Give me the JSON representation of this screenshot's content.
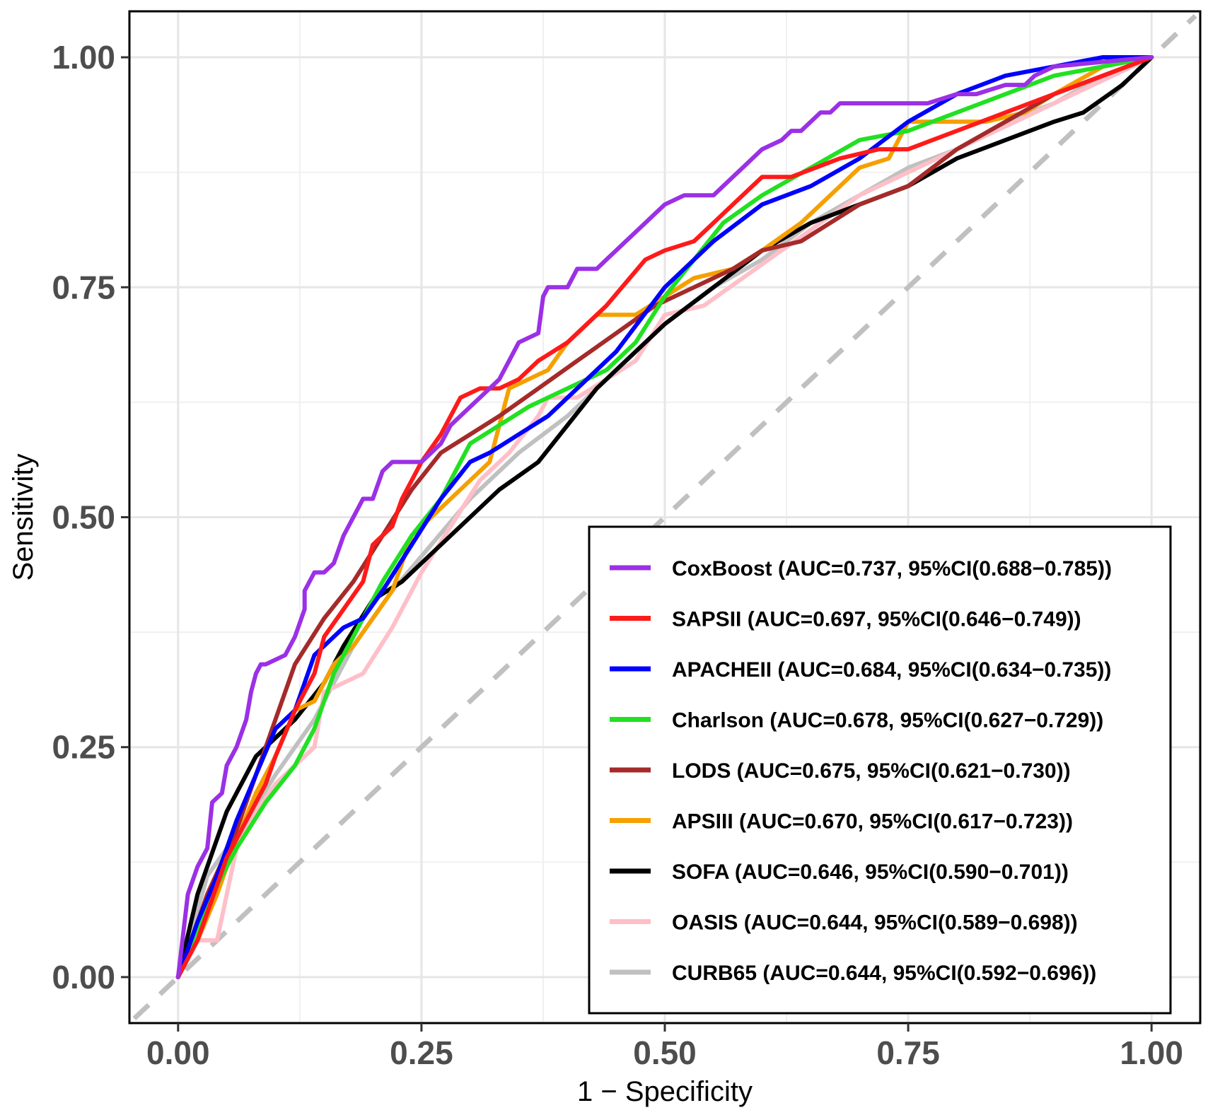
{
  "chart_data": {
    "type": "line",
    "title": "",
    "xlabel": "1 − Specificity",
    "ylabel": "Sensitivity",
    "xlim": [
      -0.05,
      1.05
    ],
    "ylim": [
      -0.05,
      1.05
    ],
    "xticks": [
      "0.00",
      "0.25",
      "0.50",
      "0.75",
      "1.00"
    ],
    "yticks": [
      "0.00",
      "0.25",
      "0.50",
      "0.75",
      "1.00"
    ],
    "grid": true,
    "legend_position": "bottom-right",
    "reference_line": {
      "from": [
        0,
        0
      ],
      "to": [
        1,
        1
      ],
      "style": "dashed",
      "color": "#c0c0c0"
    },
    "series": [
      {
        "name": "CoxBoost",
        "label": "CoxBoost (AUC=0.737, 95%CI(0.688−0.785))",
        "color": "#9b30e6",
        "x": [
          0,
          0.01,
          0.02,
          0.03,
          0.035,
          0.045,
          0.05,
          0.06,
          0.07,
          0.075,
          0.08,
          0.085,
          0.09,
          0.11,
          0.12,
          0.13,
          0.13,
          0.14,
          0.15,
          0.16,
          0.17,
          0.18,
          0.19,
          0.2,
          0.21,
          0.22,
          0.25,
          0.27,
          0.28,
          0.3,
          0.32,
          0.33,
          0.34,
          0.35,
          0.37,
          0.375,
          0.38,
          0.4,
          0.41,
          0.43,
          0.44,
          0.45,
          0.46,
          0.47,
          0.48,
          0.49,
          0.5,
          0.52,
          0.55,
          0.57,
          0.58,
          0.59,
          0.6,
          0.62,
          0.63,
          0.64,
          0.66,
          0.67,
          0.68,
          0.7,
          0.77,
          0.8,
          0.82,
          0.85,
          0.87,
          0.88,
          0.9,
          1.0
        ],
        "y": [
          0,
          0.09,
          0.12,
          0.14,
          0.19,
          0.2,
          0.23,
          0.25,
          0.28,
          0.31,
          0.33,
          0.34,
          0.34,
          0.35,
          0.37,
          0.4,
          0.42,
          0.44,
          0.44,
          0.45,
          0.48,
          0.5,
          0.52,
          0.52,
          0.55,
          0.56,
          0.56,
          0.58,
          0.6,
          0.62,
          0.64,
          0.65,
          0.67,
          0.69,
          0.7,
          0.74,
          0.75,
          0.75,
          0.77,
          0.77,
          0.78,
          0.79,
          0.8,
          0.81,
          0.82,
          0.83,
          0.84,
          0.85,
          0.85,
          0.87,
          0.88,
          0.89,
          0.9,
          0.91,
          0.92,
          0.92,
          0.94,
          0.94,
          0.95,
          0.95,
          0.95,
          0.96,
          0.96,
          0.97,
          0.97,
          0.98,
          0.99,
          1.0
        ]
      },
      {
        "name": "SAPSII",
        "label": "SAPSII (AUC=0.697, 95%CI(0.646−0.749))",
        "color": "#ff1a1a",
        "x": [
          0,
          0.02,
          0.03,
          0.05,
          0.07,
          0.09,
          0.1,
          0.12,
          0.14,
          0.15,
          0.17,
          0.19,
          0.2,
          0.22,
          0.23,
          0.25,
          0.27,
          0.29,
          0.31,
          0.33,
          0.35,
          0.37,
          0.4,
          0.44,
          0.48,
          0.5,
          0.53,
          0.57,
          0.6,
          0.63,
          0.68,
          0.72,
          0.75,
          0.8,
          0.85,
          0.9,
          0.95,
          1.0
        ],
        "y": [
          0,
          0.04,
          0.07,
          0.13,
          0.17,
          0.21,
          0.24,
          0.29,
          0.33,
          0.37,
          0.4,
          0.43,
          0.47,
          0.49,
          0.52,
          0.56,
          0.59,
          0.63,
          0.64,
          0.64,
          0.65,
          0.67,
          0.69,
          0.73,
          0.78,
          0.79,
          0.8,
          0.84,
          0.87,
          0.87,
          0.89,
          0.9,
          0.9,
          0.92,
          0.94,
          0.96,
          0.98,
          1.0
        ]
      },
      {
        "name": "APACHEII",
        "label": "APACHEII (AUC=0.684, 95%CI(0.634−0.735))",
        "color": "#0000ff",
        "x": [
          0,
          0.02,
          0.04,
          0.06,
          0.08,
          0.1,
          0.12,
          0.14,
          0.17,
          0.19,
          0.21,
          0.24,
          0.27,
          0.3,
          0.32,
          0.35,
          0.38,
          0.41,
          0.45,
          0.5,
          0.55,
          0.6,
          0.65,
          0.7,
          0.75,
          0.8,
          0.85,
          0.9,
          0.95,
          1.0
        ],
        "y": [
          0,
          0.06,
          0.11,
          0.17,
          0.22,
          0.27,
          0.29,
          0.35,
          0.38,
          0.39,
          0.42,
          0.47,
          0.52,
          0.56,
          0.57,
          0.59,
          0.61,
          0.64,
          0.68,
          0.75,
          0.8,
          0.84,
          0.86,
          0.89,
          0.93,
          0.96,
          0.98,
          0.99,
          1.0,
          1.0
        ]
      },
      {
        "name": "Charlson",
        "label": "Charlson (AUC=0.678, 95%CI(0.627−0.729))",
        "color": "#22e022",
        "x": [
          0,
          0.03,
          0.06,
          0.09,
          0.12,
          0.14,
          0.16,
          0.19,
          0.21,
          0.24,
          0.27,
          0.3,
          0.33,
          0.36,
          0.4,
          0.44,
          0.47,
          0.5,
          0.53,
          0.56,
          0.6,
          0.65,
          0.7,
          0.75,
          0.8,
          0.85,
          0.9,
          0.95,
          1.0
        ],
        "y": [
          0,
          0.08,
          0.14,
          0.19,
          0.23,
          0.27,
          0.33,
          0.39,
          0.43,
          0.48,
          0.52,
          0.58,
          0.6,
          0.62,
          0.64,
          0.66,
          0.69,
          0.74,
          0.78,
          0.82,
          0.85,
          0.88,
          0.91,
          0.92,
          0.94,
          0.96,
          0.98,
          0.99,
          1.0
        ]
      },
      {
        "name": "LODS",
        "label": "LODS (AUC=0.675, 95%CI(0.621−0.730))",
        "color": "#a52a2a",
        "x": [
          0,
          0.03,
          0.06,
          0.09,
          0.12,
          0.15,
          0.18,
          0.21,
          0.24,
          0.27,
          0.3,
          0.33,
          0.37,
          0.41,
          0.45,
          0.49,
          0.53,
          0.57,
          0.6,
          0.64,
          0.67,
          0.7,
          0.75,
          0.8,
          0.85,
          0.9,
          0.95,
          1.0
        ],
        "y": [
          0,
          0.09,
          0.16,
          0.25,
          0.34,
          0.39,
          0.43,
          0.48,
          0.53,
          0.57,
          0.59,
          0.61,
          0.64,
          0.67,
          0.7,
          0.73,
          0.75,
          0.77,
          0.79,
          0.8,
          0.82,
          0.84,
          0.86,
          0.9,
          0.93,
          0.96,
          0.98,
          1.0
        ]
      },
      {
        "name": "APSIII",
        "label": "APSIII (AUC=0.670, 95%CI(0.617−0.723))",
        "color": "#f5a000",
        "x": [
          0,
          0.02,
          0.04,
          0.06,
          0.08,
          0.1,
          0.12,
          0.14,
          0.16,
          0.18,
          0.2,
          0.22,
          0.24,
          0.26,
          0.28,
          0.3,
          0.32,
          0.34,
          0.36,
          0.38,
          0.4,
          0.43,
          0.47,
          0.5,
          0.53,
          0.57,
          0.6,
          0.64,
          0.67,
          0.7,
          0.73,
          0.75,
          0.77,
          0.8,
          0.83,
          0.87,
          0.9,
          0.95,
          1.0
        ],
        "y": [
          0,
          0.04,
          0.09,
          0.15,
          0.2,
          0.24,
          0.29,
          0.3,
          0.34,
          0.36,
          0.39,
          0.42,
          0.48,
          0.5,
          0.52,
          0.54,
          0.56,
          0.64,
          0.65,
          0.66,
          0.69,
          0.72,
          0.72,
          0.74,
          0.76,
          0.77,
          0.79,
          0.82,
          0.85,
          0.88,
          0.89,
          0.93,
          0.93,
          0.93,
          0.93,
          0.94,
          0.96,
          0.99,
          1.0
        ]
      },
      {
        "name": "SOFA",
        "label": "SOFA (AUC=0.646, 95%CI(0.590−0.701))",
        "color": "#000000",
        "x": [
          0,
          0.02,
          0.05,
          0.08,
          0.12,
          0.15,
          0.17,
          0.2,
          0.23,
          0.27,
          0.3,
          0.33,
          0.37,
          0.4,
          0.43,
          0.47,
          0.5,
          0.55,
          0.6,
          0.65,
          0.7,
          0.75,
          0.8,
          0.85,
          0.9,
          0.93,
          0.97,
          1.0
        ],
        "y": [
          0,
          0.09,
          0.18,
          0.24,
          0.28,
          0.32,
          0.36,
          0.41,
          0.43,
          0.47,
          0.5,
          0.53,
          0.56,
          0.6,
          0.64,
          0.68,
          0.71,
          0.75,
          0.79,
          0.82,
          0.84,
          0.86,
          0.89,
          0.91,
          0.93,
          0.94,
          0.97,
          1.0
        ]
      },
      {
        "name": "OASIS",
        "label": "OASIS (AUC=0.644, 95%CI(0.589−0.698))",
        "color": "#ffbfc8",
        "x": [
          0,
          0.02,
          0.04,
          0.06,
          0.08,
          0.1,
          0.12,
          0.14,
          0.15,
          0.17,
          0.19,
          0.22,
          0.25,
          0.28,
          0.31,
          0.34,
          0.37,
          0.38,
          0.41,
          0.44,
          0.47,
          0.5,
          0.54,
          0.58,
          0.62,
          0.66,
          0.7,
          0.74,
          0.78,
          0.82,
          0.86,
          0.9,
          0.94,
          1.0
        ],
        "y": [
          0,
          0.04,
          0.04,
          0.14,
          0.18,
          0.21,
          0.23,
          0.25,
          0.31,
          0.32,
          0.33,
          0.38,
          0.44,
          0.49,
          0.54,
          0.57,
          0.61,
          0.63,
          0.63,
          0.65,
          0.67,
          0.72,
          0.73,
          0.76,
          0.79,
          0.82,
          0.85,
          0.87,
          0.89,
          0.91,
          0.93,
          0.95,
          0.97,
          1.0
        ]
      },
      {
        "name": "CURB65",
        "label": "CURB65 (AUC=0.644, 95%CI(0.592−0.696))",
        "color": "#c0c0c0",
        "x": [
          0,
          0.03,
          0.07,
          0.1,
          0.14,
          0.18,
          0.22,
          0.26,
          0.3,
          0.35,
          0.4,
          0.45,
          0.5,
          0.55,
          0.6,
          0.65,
          0.7,
          0.75,
          0.8,
          0.85,
          0.9,
          0.95,
          1.0
        ],
        "y": [
          0,
          0.11,
          0.17,
          0.22,
          0.28,
          0.36,
          0.42,
          0.47,
          0.52,
          0.57,
          0.61,
          0.66,
          0.71,
          0.75,
          0.78,
          0.82,
          0.85,
          0.88,
          0.9,
          0.93,
          0.95,
          0.98,
          1.0
        ]
      }
    ]
  }
}
